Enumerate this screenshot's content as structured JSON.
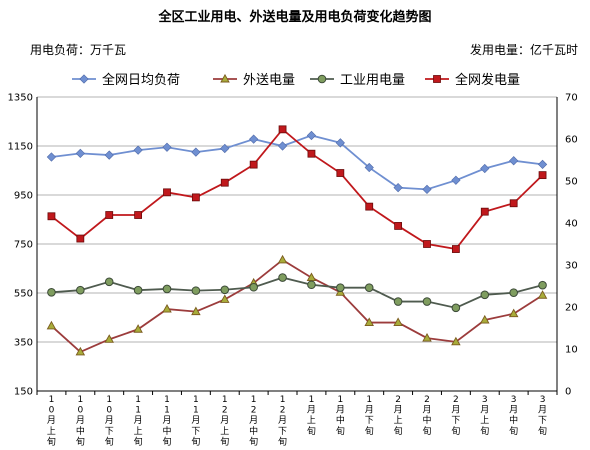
{
  "header": {
    "title": "全区工业用电、外送电量及用电负荷变化趋势图",
    "unit_left": "用电负荷：万千瓦",
    "unit_right": "发用电量：亿千瓦时"
  },
  "chart_data": {
    "type": "line",
    "title": "全区工业用电、外送电量及用电负荷变化趋势图",
    "categories": [
      "10月上旬",
      "10月中旬",
      "10月下旬",
      "11月上旬",
      "11月中旬",
      "11月下旬",
      "12月上旬",
      "12月中旬",
      "12月下旬",
      "1月上旬",
      "1月中旬",
      "1月下旬",
      "2月上旬",
      "2月中旬",
      "2月下旬",
      "3月上旬",
      "3月中旬",
      "3月下旬"
    ],
    "y_left": {
      "label": "用电负荷：万千瓦",
      "min": 150,
      "max": 1350,
      "step": 200,
      "ticks": [
        "150",
        "350",
        "550",
        "750",
        "950",
        "1150",
        "1350"
      ]
    },
    "y_right": {
      "label": "发用电量：亿千瓦时",
      "min": 0,
      "max": 70,
      "step": 10,
      "ticks": [
        "0",
        "10",
        "20",
        "30",
        "40",
        "50",
        "60",
        "70"
      ]
    },
    "grid": true,
    "legend": "top",
    "series": [
      {
        "name": "全网日均负荷",
        "axis": "left",
        "color": "#6f8fd1",
        "marker": "diamond",
        "values": [
          1105,
          1120,
          1113,
          1133,
          1145,
          1125,
          1140,
          1178,
          1150,
          1193,
          1163,
          1062,
          980,
          973,
          1010,
          1058,
          1090,
          1075
        ]
      },
      {
        "name": "外送电量",
        "axis": "right",
        "color": "#9c3c3c",
        "marker": "triangle",
        "values": [
          15.5,
          9.3,
          12.3,
          14.7,
          19.5,
          18.9,
          21.8,
          25.7,
          31.2,
          27.0,
          23.5,
          16.3,
          16.3,
          12.6,
          11.7,
          16.9,
          18.4,
          22.8
        ]
      },
      {
        "name": "工业用电量",
        "axis": "right",
        "color": "#4f5b4f",
        "marker": "circle",
        "values": [
          23.5,
          24.0,
          26.0,
          24.0,
          24.3,
          23.9,
          24.1,
          24.7,
          27.0,
          25.3,
          24.6,
          24.6,
          21.3,
          21.3,
          19.8,
          22.9,
          23.4,
          25.2
        ]
      },
      {
        "name": "全网发电量",
        "axis": "right",
        "color": "#c0181c",
        "marker": "square",
        "values": [
          41.6,
          36.3,
          41.9,
          41.9,
          47.3,
          46.1,
          49.6,
          53.9,
          62.3,
          56.5,
          51.9,
          43.9,
          39.3,
          35.0,
          33.8,
          42.7,
          44.7,
          51.4
        ]
      }
    ]
  }
}
